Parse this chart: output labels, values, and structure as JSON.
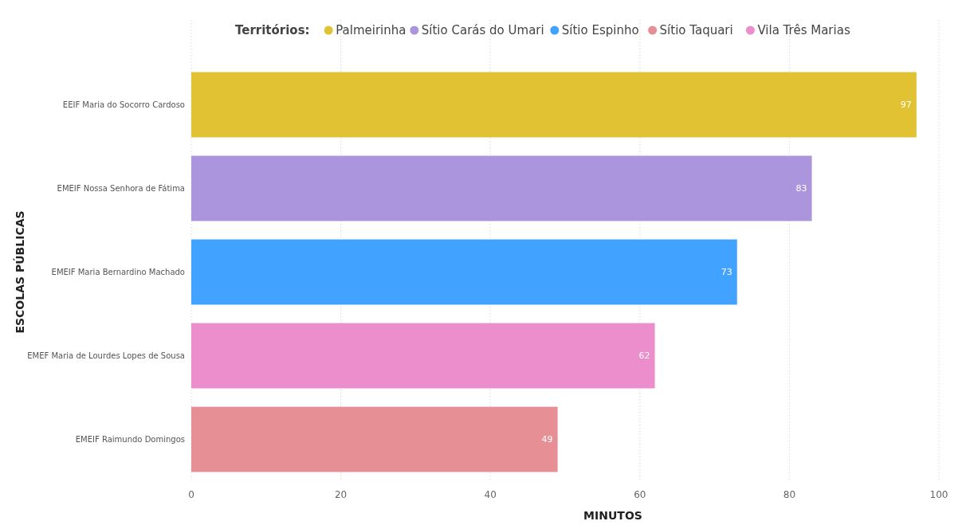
{
  "chart_data": {
    "type": "bar",
    "orientation": "horizontal",
    "xlabel": "MINUTOS",
    "ylabel": "ESCOLAS PÚBLICAS",
    "legend_title": "Territórios:",
    "legend": "top",
    "categories": [
      "EEIF Maria do Socorro Cardoso",
      "EMEIF Nossa Senhora de Fátima",
      "EMEIF Maria Bernardino Machado",
      "EMEF Maria de Lourdes Lopes de Sousa",
      "EMEIF Raimundo Domingos"
    ],
    "series": [
      {
        "name": "Palmeirinha",
        "color": "#e0c232",
        "values": [
          97,
          null,
          null,
          null,
          null
        ]
      },
      {
        "name": "Sítio Carás do Umari",
        "color": "#ab95dd",
        "values": [
          null,
          83,
          null,
          null,
          null
        ]
      },
      {
        "name": "Sítio Espinho",
        "color": "#41a3ff",
        "values": [
          null,
          null,
          73,
          null,
          null
        ]
      },
      {
        "name": "Sítio Taquari",
        "color": "#e69096",
        "values": [
          null,
          null,
          null,
          null,
          49
        ]
      },
      {
        "name": "Vila Três Marias",
        "color": "#ec8ecb",
        "values": [
          null,
          null,
          null,
          62,
          null
        ]
      }
    ],
    "xlim": [
      0,
      100
    ],
    "xticks": [
      0,
      20,
      40,
      60,
      80,
      100
    ],
    "grid": "x",
    "data_labels": true
  }
}
